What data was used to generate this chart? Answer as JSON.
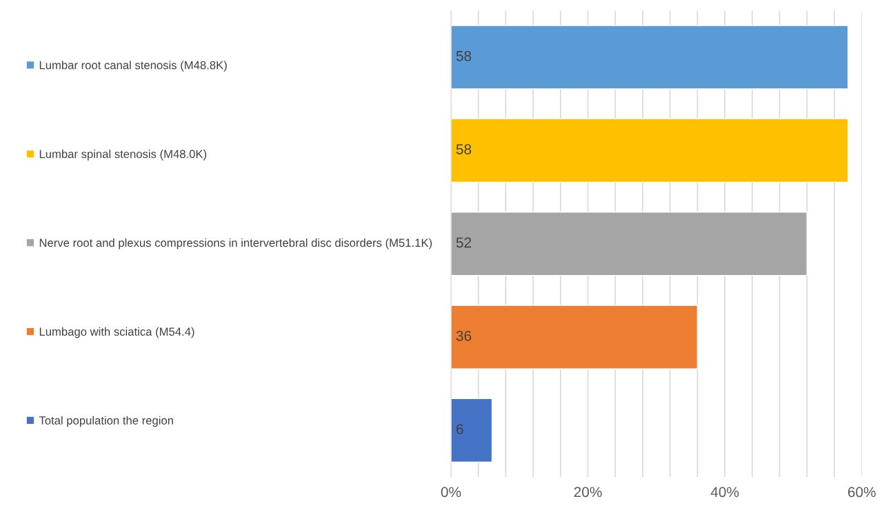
{
  "chart_data": {
    "type": "bar",
    "orientation": "horizontal",
    "categories": [
      null,
      null,
      null,
      null,
      null
    ],
    "series": [
      {
        "name": "Lumbar root canal stenosis (M48.8K)",
        "color": "#5b9bd5",
        "values": [
          58,
          null,
          null,
          null,
          null
        ]
      },
      {
        "name": "Lumbar spinal stenosis (M48.0K)",
        "color": "#ffc000",
        "values": [
          null,
          58,
          null,
          null,
          null
        ]
      },
      {
        "name": "Nerve root and plexus compressions in intervertebral disc disorders (M51.1K)",
        "color": "#a5a5a5",
        "values": [
          null,
          null,
          52,
          null,
          null
        ]
      },
      {
        "name": "Lumbago with sciatica (M54.4)",
        "color": "#ed7d31",
        "values": [
          null,
          null,
          null,
          36,
          null
        ]
      },
      {
        "name": "Total population the region",
        "color": "#4472c4",
        "values": [
          null,
          null,
          null,
          null,
          6
        ]
      }
    ],
    "xlim": [
      0,
      60
    ],
    "xticks": [
      {
        "value": 0,
        "label": "0%"
      },
      {
        "value": 4,
        "label": null
      },
      {
        "value": 8,
        "label": null
      },
      {
        "value": 12,
        "label": null
      },
      {
        "value": 16,
        "label": null
      },
      {
        "value": 20,
        "label": "20%"
      },
      {
        "value": 24,
        "label": null
      },
      {
        "value": 28,
        "label": null
      },
      {
        "value": 32,
        "label": null
      },
      {
        "value": 36,
        "label": null
      },
      {
        "value": 40,
        "label": "40%"
      },
      {
        "value": 44,
        "label": null
      },
      {
        "value": 48,
        "label": null
      },
      {
        "value": 52,
        "label": null
      },
      {
        "value": 56,
        "label": null
      },
      {
        "value": 60,
        "label": "60%"
      }
    ],
    "grid": "x",
    "legend": "left",
    "data_labels": true,
    "tick_labels": "x"
  }
}
